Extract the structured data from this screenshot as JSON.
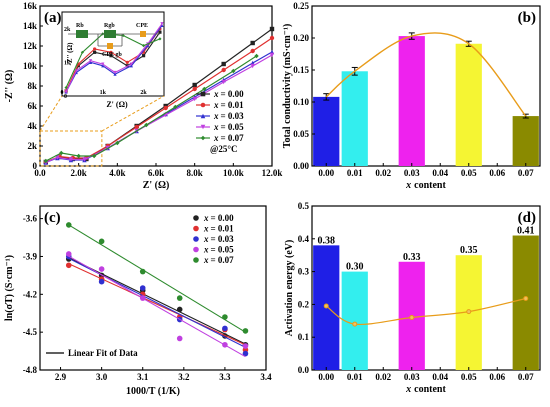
{
  "panels": {
    "a": {
      "label": "(a)",
      "xlabel": "Z' (Ω)",
      "ylabel": "-Z'' (Ω)",
      "xticks": [
        "0.0",
        "2.0k",
        "4.0k",
        "6.0k",
        "8.0k",
        "10.0k",
        "12.0k"
      ],
      "yticks": [
        "0",
        "2k",
        "4k",
        "6k",
        "8k",
        "10k",
        "12k",
        "14k",
        "16k"
      ],
      "temp_note": "@25°C",
      "legend": [
        {
          "var": "x",
          "val": "= 0.00"
        },
        {
          "var": "x",
          "val": "= 0.01"
        },
        {
          "var": "x",
          "val": "= 0.03"
        },
        {
          "var": "x",
          "val": "= 0.05"
        },
        {
          "var": "x",
          "val": "= 0.07"
        }
      ],
      "inset": {
        "xlabel": "Z' (Ω)",
        "ylabel": "-Z'' (Ω)",
        "xticks": [
          "0",
          "1k",
          "2k"
        ],
        "yticks": [
          "0",
          "1k",
          "2k"
        ],
        "circuit": {
          "r1": "Rb",
          "r2": "Rgb",
          "cpe_gb": "CPE gb",
          "cpe": "CPE"
        }
      }
    },
    "b": {
      "label": "(b)",
      "xlabel": "x content",
      "ylabel": "Total conductivity (mS·cm⁻¹)",
      "xticks": [
        "0.00",
        "0.01",
        "0.02",
        "0.03",
        "0.04",
        "0.05",
        "0.06",
        "0.07"
      ],
      "yticks": [
        "0.00",
        "0.05",
        "0.10",
        "0.15",
        "0.20",
        "0.25"
      ]
    },
    "c": {
      "label": "(c)",
      "xlabel": "1000/T (1/K)",
      "ylabel": "ln(σT) (S·cm⁻¹)",
      "xticks": [
        "2.9",
        "3.0",
        "3.1",
        "3.2",
        "3.3",
        "3.4"
      ],
      "yticks": [
        "-3.6",
        "-3.9",
        "-4.2",
        "-4.5",
        "-4.8"
      ],
      "legend": [
        {
          "var": "x",
          "val": "= 0.00"
        },
        {
          "var": "x",
          "val": "= 0.01"
        },
        {
          "var": "x",
          "val": "= 0.03"
        },
        {
          "var": "x",
          "val": "= 0.05"
        },
        {
          "var": "x",
          "val": "= 0.07"
        }
      ],
      "fit_label": "Linear Fit of Data"
    },
    "d": {
      "label": "(d)",
      "xlabel": "x content",
      "ylabel": "Activation energy (eV)",
      "xticks": [
        "0.00",
        "0.01",
        "0.02",
        "0.03",
        "0.04",
        "0.05",
        "0.06",
        "0.07"
      ],
      "yticks": [
        "0.0",
        "0.1",
        "0.2",
        "0.3",
        "0.4",
        "0.5"
      ]
    }
  },
  "colors": {
    "s000": "#222222",
    "s001": "#e03030",
    "s003": "#3030d0",
    "s005": "#c040e0",
    "s007": "#2e8b2e",
    "bar000": "#1f1fe6",
    "bar001": "#33eeee",
    "bar003": "#ee22ee",
    "bar005": "#f5f533",
    "bar007": "#8a8a00",
    "trend": "#e89c1a"
  },
  "chart_data": [
    {
      "panel": "a",
      "type": "scatter",
      "title": "",
      "xlabel": "Z' (Ω)",
      "ylabel": "-Z'' (Ω)",
      "xlim": [
        0,
        12000
      ],
      "ylim": [
        0,
        16000
      ],
      "series": [
        {
          "name": "x = 0.00",
          "x": [
            300,
            1000,
            1700,
            2400,
            3500,
            5000,
            6500,
            8000,
            9500,
            11000,
            12000
          ],
          "y": [
            400,
            900,
            700,
            700,
            2000,
            4000,
            6000,
            8100,
            10200,
            12300,
            13700
          ]
        },
        {
          "name": "x = 0.01",
          "x": [
            300,
            1000,
            1700,
            2400,
            3500,
            5000,
            6500,
            8000,
            9500,
            11000,
            12000
          ],
          "y": [
            400,
            950,
            800,
            800,
            2000,
            3900,
            5800,
            7700,
            9600,
            11500,
            12800
          ]
        },
        {
          "name": "x = 0.03",
          "x": [
            300,
            900,
            1600,
            2300,
            3500,
            5000,
            6500,
            8000,
            9500,
            11000,
            12000
          ],
          "y": [
            350,
            800,
            600,
            600,
            1800,
            3500,
            5200,
            6900,
            8600,
            10300,
            11400
          ]
        },
        {
          "name": "x = 0.05",
          "x": [
            300,
            900,
            1600,
            2300,
            3500,
            5000,
            6500,
            8000,
            9500,
            11000,
            12000
          ],
          "y": [
            350,
            850,
            650,
            650,
            1800,
            3500,
            5100,
            6700,
            8400,
            10000,
            11100
          ]
        },
        {
          "name": "x = 0.07",
          "x": [
            300,
            1100,
            2000,
            2800,
            4000,
            5500,
            7000,
            8500,
            10000,
            11200
          ],
          "y": [
            500,
            1300,
            1000,
            1000,
            2300,
            4100,
            5900,
            7700,
            9500,
            11000
          ]
        }
      ],
      "inset": {
        "xlim": [
          0,
          2500
        ],
        "ylim": [
          0,
          2500
        ],
        "series": [
          {
            "name": "x = 0.00",
            "x": [
              100,
              400,
              800,
              1200,
              1600,
              2000,
              2400
            ],
            "y": [
              150,
              900,
              1300,
              1200,
              900,
              1200,
              1900
            ]
          },
          {
            "name": "x = 0.01",
            "x": [
              100,
              400,
              800,
              1200,
              1600,
              2000,
              2400
            ],
            "y": [
              150,
              950,
              1400,
              1300,
              1000,
              1300,
              2000
            ]
          },
          {
            "name": "x = 0.03",
            "x": [
              100,
              350,
              700,
              1000,
              1300,
              1700,
              2100,
              2450
            ],
            "y": [
              120,
              700,
              1000,
              900,
              650,
              900,
              1500,
              2100
            ]
          },
          {
            "name": "x = 0.05",
            "x": [
              100,
              350,
              700,
              1000,
              1300,
              1700,
              2100,
              2450
            ],
            "y": [
              120,
              750,
              1050,
              950,
              700,
              950,
              1550,
              2150
            ]
          },
          {
            "name": "x = 0.07",
            "x": [
              100,
              500,
              1000,
              1500,
              2000,
              2400
            ],
            "y": [
              250,
              1300,
              1850,
              1800,
              1500,
              1700
            ]
          }
        ]
      }
    },
    {
      "panel": "b",
      "type": "bar",
      "title": "",
      "xlabel": "x content",
      "ylabel": "Total conductivity (mS·cm⁻¹)",
      "xlim": [
        -0.005,
        0.075
      ],
      "ylim": [
        0,
        0.25
      ],
      "x": [
        0.0,
        0.01,
        0.03,
        0.05,
        0.07
      ],
      "values": [
        0.108,
        0.148,
        0.203,
        0.191,
        0.078
      ],
      "errors": [
        0.005,
        0.006,
        0.005,
        0.004,
        0.003
      ]
    },
    {
      "panel": "c",
      "type": "scatter",
      "title": "",
      "xlabel": "1000/T (1/K)",
      "ylabel": "ln(σT) (S·cm⁻¹)",
      "xlim": [
        2.85,
        3.4
      ],
      "ylim": [
        -4.8,
        -3.5
      ],
      "series": [
        {
          "name": "x = 0.00",
          "x": [
            2.92,
            3.0,
            3.1,
            3.19,
            3.3,
            3.35
          ],
          "y": [
            -3.92,
            -4.05,
            -4.17,
            -4.32,
            -4.53,
            -4.6
          ]
        },
        {
          "name": "x = 0.01",
          "x": [
            2.92,
            3.0,
            3.1,
            3.19,
            3.3,
            3.35
          ],
          "y": [
            -3.97,
            -4.08,
            -4.2,
            -4.38,
            -4.48,
            -4.64
          ]
        },
        {
          "name": "x = 0.03",
          "x": [
            2.92,
            3.0,
            3.1,
            3.19,
            3.3,
            3.35
          ],
          "y": [
            -3.9,
            -4.1,
            -4.15,
            -4.4,
            -4.47,
            -4.67
          ]
        },
        {
          "name": "x = 0.05",
          "x": [
            2.92,
            3.0,
            3.1,
            3.19,
            3.3,
            3.35
          ],
          "y": [
            -3.88,
            -4.0,
            -4.23,
            -4.55,
            -4.6,
            -4.61
          ]
        },
        {
          "name": "x = 0.07",
          "x": [
            2.92,
            3.0,
            3.1,
            3.19,
            3.3,
            3.35
          ],
          "y": [
            -3.65,
            -3.78,
            -4.02,
            -4.23,
            -4.38,
            -4.49
          ]
        }
      ]
    },
    {
      "panel": "d",
      "type": "bar",
      "title": "",
      "xlabel": "x content",
      "ylabel": "Activation energy (eV)",
      "xlim": [
        -0.005,
        0.075
      ],
      "ylim": [
        0,
        0.5
      ],
      "x": [
        0.0,
        0.01,
        0.03,
        0.05,
        0.07
      ],
      "values": [
        0.38,
        0.3,
        0.33,
        0.35,
        0.41
      ],
      "data_labels": [
        "0.38",
        "0.30",
        "0.33",
        "0.35",
        "0.41"
      ],
      "trend_points": [
        0.195,
        0.14,
        0.16,
        0.178,
        0.218
      ]
    }
  ]
}
